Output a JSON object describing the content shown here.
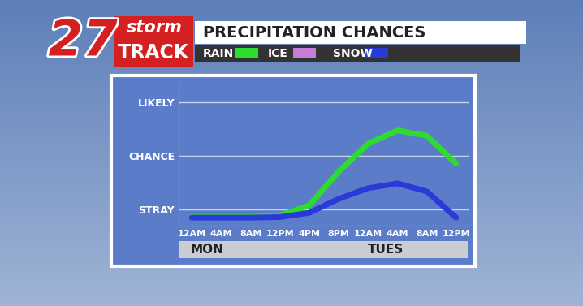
{
  "chart_data": {
    "type": "line",
    "title": "PRECIPITATION CHANCES",
    "logo": {
      "number": "27",
      "top": "storm",
      "bottom": "TRACK"
    },
    "categories": [
      "12AM",
      "4AM",
      "8AM",
      "12PM",
      "4PM",
      "8PM",
      "12AM",
      "4AM",
      "8AM",
      "12PM"
    ],
    "day_labels": [
      "MON",
      "TUES"
    ],
    "series": [
      {
        "name": "RAIN",
        "color": "#2edc2e",
        "values": [
          0.86,
          0.86,
          0.86,
          0.89,
          1.08,
          1.71,
          2.23,
          2.48,
          2.38,
          1.86
        ]
      },
      {
        "name": "ICE",
        "color": "#c77dd6",
        "values": [
          null,
          null,
          null,
          null,
          null,
          null,
          null,
          null,
          null,
          null
        ]
      },
      {
        "name": "SNOW",
        "color": "#2a3ad8",
        "values": [
          0.85,
          0.85,
          0.85,
          0.86,
          0.94,
          1.2,
          1.4,
          1.49,
          1.34,
          0.85
        ]
      }
    ],
    "ylim": [
      0.7,
      3.4
    ],
    "yticks": [
      {
        "value": 1,
        "label": "STRAY"
      },
      {
        "value": 2,
        "label": "CHANCE"
      },
      {
        "value": 3,
        "label": "LIKELY"
      }
    ],
    "grid": true
  }
}
